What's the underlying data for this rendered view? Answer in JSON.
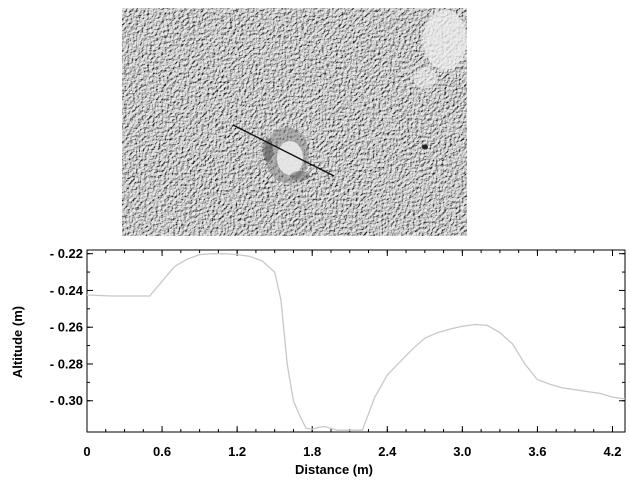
{
  "image_panel": {
    "description_icon": "terrain-relief-image"
  },
  "chart_data": {
    "type": "line",
    "xlabel": "Distance (m)",
    "ylabel": "Altitude  (m)",
    "xlim": [
      0,
      4.3
    ],
    "ylim": [
      -0.317,
      -0.218
    ],
    "x_ticks": [
      "0",
      "0.6",
      "1.2",
      "1.8",
      "2.4",
      "3.0",
      "3.6",
      "4.2"
    ],
    "x_tick_values": [
      0,
      0.6,
      1.2,
      1.8,
      2.4,
      3.0,
      3.6,
      4.2
    ],
    "y_ticks": [
      "- 0.22",
      "- 0.24",
      "- 0.26",
      "- 0.28",
      "- 0.30"
    ],
    "y_tick_values": [
      -0.22,
      -0.24,
      -0.26,
      -0.28,
      -0.3
    ],
    "grid": false,
    "series": [
      {
        "color": "#c8c8c8",
        "x": [
          0,
          0.2,
          0.5,
          0.6,
          0.7,
          0.8,
          0.9,
          1.0,
          1.1,
          1.2,
          1.3,
          1.4,
          1.5,
          1.55,
          1.6,
          1.65,
          1.7,
          1.75,
          1.8,
          1.85,
          1.9,
          2.0,
          2.1,
          2.2,
          2.3,
          2.4,
          2.5,
          2.6,
          2.7,
          2.8,
          2.9,
          3.0,
          3.1,
          3.2,
          3.3,
          3.4,
          3.5,
          3.6,
          3.7,
          3.8,
          3.9,
          4.0,
          4.1,
          4.2,
          4.3
        ],
        "y": [
          -0.2425,
          -0.243,
          -0.243,
          -0.235,
          -0.227,
          -0.223,
          -0.2205,
          -0.22,
          -0.22,
          -0.2205,
          -0.2215,
          -0.224,
          -0.23,
          -0.245,
          -0.28,
          -0.3,
          -0.308,
          -0.315,
          -0.3155,
          -0.3145,
          -0.314,
          -0.316,
          -0.316,
          -0.316,
          -0.298,
          -0.286,
          -0.279,
          -0.272,
          -0.266,
          -0.263,
          -0.261,
          -0.2595,
          -0.2585,
          -0.259,
          -0.263,
          -0.269,
          -0.28,
          -0.2885,
          -0.291,
          -0.293,
          -0.294,
          -0.295,
          -0.296,
          -0.298,
          -0.299
        ]
      }
    ]
  }
}
